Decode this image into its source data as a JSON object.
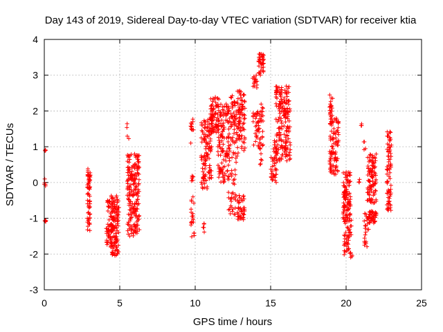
{
  "chart_data": {
    "type": "scatter",
    "title": "Day 143 of 2019, Sidereal Day-to-day VTEC variation (SDTVAR) for receiver ktia",
    "xlabel": "GPS time / hours",
    "ylabel": "SDTVAR / TECUs",
    "xlim": [
      0,
      25
    ],
    "ylim": [
      -3,
      4
    ],
    "xticks": [
      "0",
      "5",
      "10",
      "15",
      "20",
      "25"
    ],
    "yticks": [
      "-3",
      "-2",
      "-1",
      "0",
      "1",
      "2",
      "3",
      "4"
    ],
    "grid": true,
    "marker": "+",
    "marker_color": "#ff0000",
    "series_name": "SDTVAR",
    "clusters": [
      {
        "x": [
          0.0,
          0.12
        ],
        "y": [
          -1.1,
          -0.95
        ],
        "n": 6
      },
      {
        "x": [
          0.0,
          0.12
        ],
        "y": [
          -0.1,
          0.1
        ],
        "n": 5
      },
      {
        "x": [
          0.0,
          0.12
        ],
        "y": [
          0.85,
          0.95
        ],
        "n": 3
      },
      {
        "x": [
          2.85,
          3.05
        ],
        "y": [
          -1.35,
          0.4
        ],
        "n": 60
      },
      {
        "x": [
          4.1,
          4.45
        ],
        "y": [
          -1.8,
          -0.5
        ],
        "n": 45
      },
      {
        "x": [
          4.4,
          4.95
        ],
        "y": [
          -2.05,
          -0.35
        ],
        "n": 140
      },
      {
        "x": [
          5.5,
          6.3
        ],
        "y": [
          -1.5,
          0.8
        ],
        "n": 200
      },
      {
        "x": [
          5.45,
          5.6
        ],
        "y": [
          1.2,
          1.7
        ],
        "n": 4
      },
      {
        "x": [
          9.7,
          9.95
        ],
        "y": [
          -1.6,
          -0.3
        ],
        "n": 20
      },
      {
        "x": [
          9.75,
          9.9
        ],
        "y": [
          0.0,
          0.4
        ],
        "n": 6
      },
      {
        "x": [
          9.7,
          9.9
        ],
        "y": [
          1.1,
          1.9
        ],
        "n": 12
      },
      {
        "x": [
          10.4,
          11.1
        ],
        "y": [
          -0.2,
          1.8
        ],
        "n": 120
      },
      {
        "x": [
          10.4,
          10.6
        ],
        "y": [
          -1.5,
          -1.0
        ],
        "n": 5
      },
      {
        "x": [
          11.0,
          11.6
        ],
        "y": [
          1.4,
          2.4
        ],
        "n": 80
      },
      {
        "x": [
          11.5,
          12.3
        ],
        "y": [
          0.0,
          2.2
        ],
        "n": 120
      },
      {
        "x": [
          12.2,
          12.8
        ],
        "y": [
          -0.9,
          2.6
        ],
        "n": 100
      },
      {
        "x": [
          12.8,
          13.3
        ],
        "y": [
          -1.1,
          -0.3
        ],
        "n": 40
      },
      {
        "x": [
          12.8,
          13.3
        ],
        "y": [
          0.8,
          2.6
        ],
        "n": 80
      },
      {
        "x": [
          13.8,
          14.1
        ],
        "y": [
          2.6,
          3.0
        ],
        "n": 15
      },
      {
        "x": [
          13.8,
          14.3
        ],
        "y": [
          1.0,
          2.0
        ],
        "n": 35
      },
      {
        "x": [
          14.2,
          14.55
        ],
        "y": [
          3.0,
          3.6
        ],
        "n": 40
      },
      {
        "x": [
          14.25,
          14.5
        ],
        "y": [
          0.5,
          2.2
        ],
        "n": 30
      },
      {
        "x": [
          15.0,
          15.4
        ],
        "y": [
          0.0,
          1.2
        ],
        "n": 40
      },
      {
        "x": [
          15.35,
          16.3
        ],
        "y": [
          0.6,
          2.7
        ],
        "n": 180
      },
      {
        "x": [
          18.9,
          19.15
        ],
        "y": [
          1.6,
          2.45
        ],
        "n": 25
      },
      {
        "x": [
          18.9,
          19.5
        ],
        "y": [
          0.2,
          1.8
        ],
        "n": 90
      },
      {
        "x": [
          19.8,
          20.3
        ],
        "y": [
          -1.1,
          0.3
        ],
        "n": 100
      },
      {
        "x": [
          19.85,
          20.4
        ],
        "y": [
          -2.1,
          -1.0
        ],
        "n": 50
      },
      {
        "x": [
          20.85,
          20.95
        ],
        "y": [
          0.0,
          0.15
        ],
        "n": 3
      },
      {
        "x": [
          20.9,
          21.05
        ],
        "y": [
          1.55,
          1.7
        ],
        "n": 3
      },
      {
        "x": [
          21.1,
          21.3
        ],
        "y": [
          0.9,
          1.15
        ],
        "n": 4
      },
      {
        "x": [
          21.2,
          21.5
        ],
        "y": [
          -1.8,
          -0.8
        ],
        "n": 25
      },
      {
        "x": [
          21.4,
          22.0
        ],
        "y": [
          -0.6,
          0.8
        ],
        "n": 100
      },
      {
        "x": [
          21.5,
          22.0
        ],
        "y": [
          -1.15,
          -0.8
        ],
        "n": 40
      },
      {
        "x": [
          22.7,
          23.0
        ],
        "y": [
          -0.8,
          1.45
        ],
        "n": 80
      }
    ]
  }
}
